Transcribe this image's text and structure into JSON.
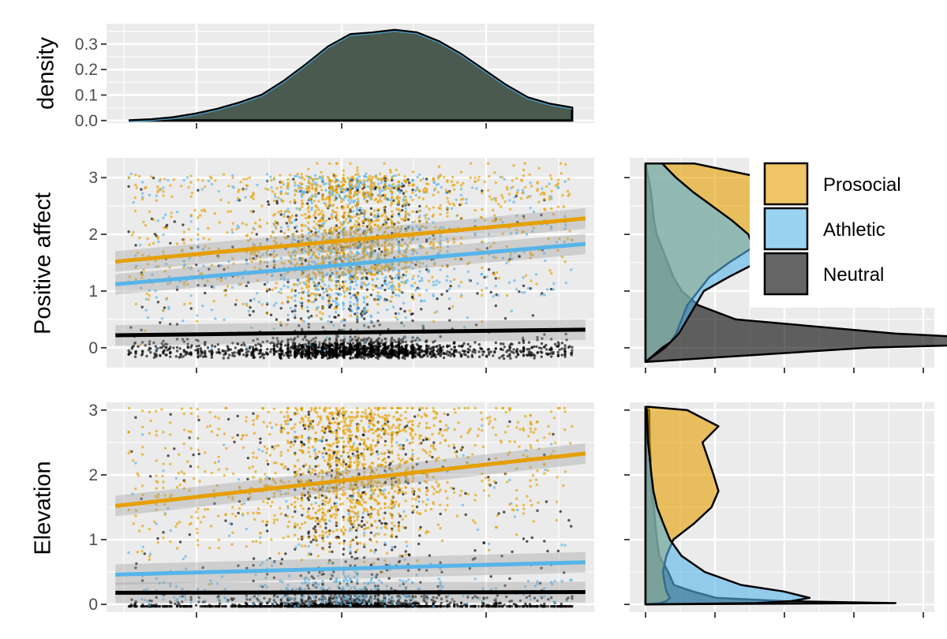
{
  "colors": {
    "prosocial": "#E69F00",
    "athletic": "#56B4E9",
    "neutral": "#000000",
    "panel": "#EBEBEB",
    "grid": "#FFFFFF",
    "marginal_fill": "#4A5A4E"
  },
  "legend": {
    "position": "inside-top-right",
    "items": [
      {
        "key": "prosocial",
        "label": "Prosocial"
      },
      {
        "key": "athletic",
        "label": "Athletic"
      },
      {
        "key": "neutral",
        "label": "Neutral"
      }
    ]
  },
  "chart_data": [
    {
      "type": "area",
      "panel": "top-marginal-density",
      "ylabel": "density",
      "yticks": [
        "0.0",
        "0.1",
        "0.2",
        "0.3"
      ],
      "ytick_values": [
        0.0,
        0.1,
        0.2,
        0.3
      ],
      "ylim": [
        -0.01,
        0.38
      ],
      "xlim": [
        -0.05,
        1.05
      ],
      "x": [
        0.0,
        0.05,
        0.1,
        0.15,
        0.2,
        0.25,
        0.3,
        0.35,
        0.4,
        0.45,
        0.5,
        0.55,
        0.6,
        0.65,
        0.7,
        0.75,
        0.8,
        0.85,
        0.9,
        0.95,
        1.0
      ],
      "y": [
        0.0,
        0.004,
        0.012,
        0.026,
        0.045,
        0.07,
        0.1,
        0.155,
        0.22,
        0.29,
        0.338,
        0.345,
        0.355,
        0.345,
        0.31,
        0.26,
        0.2,
        0.14,
        0.09,
        0.065,
        0.05
      ]
    },
    {
      "type": "scatter",
      "panel": "positive-affect",
      "ylabel": "Positive affect",
      "yticks": [
        "0",
        "1",
        "2",
        "3"
      ],
      "ytick_values": [
        0,
        1,
        2,
        3
      ],
      "ylim": [
        -0.35,
        3.35
      ],
      "xlim": [
        -0.05,
        1.05
      ],
      "jitter_range": [
        -0.25,
        3.25
      ],
      "series": [
        {
          "name": "Prosocial",
          "key": "prosocial",
          "fit": {
            "x": [
              -0.03,
              1.03
            ],
            "y": [
              1.52,
              2.28
            ]
          }
        },
        {
          "name": "Athletic",
          "key": "athletic",
          "fit": {
            "x": [
              -0.03,
              1.03
            ],
            "y": [
              1.12,
              1.83
            ]
          }
        },
        {
          "name": "Neutral",
          "key": "neutral",
          "fit": {
            "x": [
              -0.03,
              1.03
            ],
            "y": [
              0.22,
              0.32
            ]
          }
        }
      ]
    },
    {
      "type": "area",
      "panel": "positive-affect-density",
      "orientation": "horizontal",
      "ylim": [
        -0.35,
        3.35
      ],
      "xlim": [
        0,
        2.0
      ],
      "y": [
        -0.25,
        0.0,
        0.1,
        0.25,
        0.5,
        0.75,
        1.0,
        1.25,
        1.5,
        1.75,
        2.0,
        2.25,
        2.5,
        2.75,
        3.0,
        3.25
      ],
      "series": [
        {
          "name": "Prosocial",
          "key": "prosocial",
          "density": [
            0.0,
            0.14,
            0.18,
            0.22,
            0.26,
            0.3,
            0.38,
            0.46,
            0.6,
            0.76,
            1.02,
            0.82,
            0.8,
            0.86,
            0.84,
            0.35
          ]
        },
        {
          "name": "Athletic",
          "key": "athletic",
          "density": [
            0.0,
            0.12,
            0.18,
            0.24,
            0.3,
            0.36,
            0.42,
            0.6,
            0.8,
            0.78,
            0.74,
            0.62,
            0.48,
            0.34,
            0.22,
            0.12
          ]
        },
        {
          "name": "Neutral",
          "key": "neutral",
          "density": [
            0.0,
            1.6,
            3.05,
            1.8,
            0.65,
            0.38,
            0.26,
            0.2,
            0.16,
            0.12,
            0.08,
            0.06,
            0.05,
            0.04,
            0.02,
            0.0
          ]
        }
      ]
    },
    {
      "type": "scatter",
      "panel": "elevation",
      "ylabel": "Elevation",
      "yticks": [
        "0",
        "1",
        "2",
        "3"
      ],
      "ytick_values": [
        0,
        1,
        2,
        3
      ],
      "ylim": [
        -0.12,
        3.12
      ],
      "xlim": [
        -0.05,
        1.05
      ],
      "jitter_range": [
        -0.03,
        3.03
      ],
      "series": [
        {
          "name": "Prosocial",
          "key": "prosocial",
          "fit": {
            "x": [
              -0.03,
              1.03
            ],
            "y": [
              1.52,
              2.33
            ]
          }
        },
        {
          "name": "Athletic",
          "key": "athletic",
          "fit": {
            "x": [
              -0.03,
              1.03
            ],
            "y": [
              0.46,
              0.65
            ]
          }
        },
        {
          "name": "Neutral",
          "key": "neutral",
          "fit": {
            "x": [
              -0.03,
              1.03
            ],
            "y": [
              0.18,
              0.19
            ]
          }
        }
      ]
    },
    {
      "type": "area",
      "panel": "elevation-density",
      "orientation": "horizontal",
      "ylim": [
        -0.12,
        3.12
      ],
      "xlim": [
        0,
        4.0
      ],
      "y": [
        0.0,
        0.02,
        0.05,
        0.1,
        0.2,
        0.3,
        0.5,
        0.75,
        1.0,
        1.25,
        1.5,
        1.75,
        2.0,
        2.25,
        2.5,
        2.75,
        3.0,
        3.05
      ],
      "series": [
        {
          "name": "Prosocial",
          "key": "prosocial",
          "density": [
            0.0,
            0.2,
            0.3,
            0.35,
            0.3,
            0.28,
            0.25,
            0.3,
            0.4,
            0.7,
            0.95,
            1.05,
            0.98,
            0.9,
            0.82,
            1.05,
            0.6,
            0.05
          ]
        },
        {
          "name": "Athletic",
          "key": "athletic",
          "density": [
            0.0,
            1.6,
            2.1,
            2.2,
            1.9,
            1.4,
            0.8,
            0.55,
            0.35,
            0.25,
            0.18,
            0.12,
            0.08,
            0.06,
            0.04,
            0.03,
            0.02,
            0.0
          ]
        },
        {
          "name": "Neutral",
          "key": "neutral",
          "density": [
            0.0,
            3.6,
            2.0,
            1.1,
            0.65,
            0.45,
            0.3,
            0.22,
            0.18,
            0.15,
            0.12,
            0.1,
            0.08,
            0.07,
            0.06,
            0.06,
            0.05,
            0.0
          ]
        }
      ]
    }
  ]
}
